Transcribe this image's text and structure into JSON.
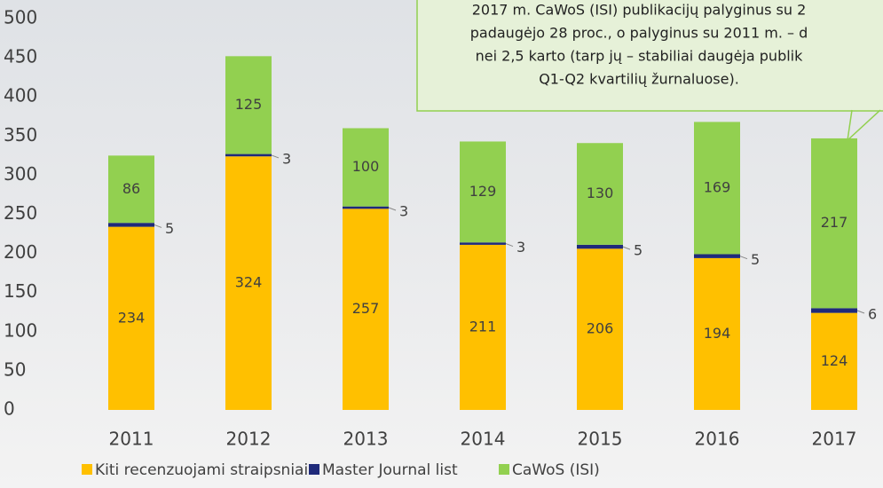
{
  "chart_data": {
    "type": "stacked-bar",
    "categories": [
      "2011",
      "2012",
      "2013",
      "2014",
      "2015",
      "2016",
      "2017"
    ],
    "series": [
      {
        "name": "Kiti recenzuojami straipsniai",
        "color": "#ffc000",
        "values": [
          234,
          324,
          257,
          211,
          206,
          194,
          124
        ]
      },
      {
        "name": "Master Journal list",
        "color": "#1f2a7a",
        "values": [
          5,
          3,
          3,
          3,
          5,
          5,
          6
        ]
      },
      {
        "name": "CaWoS (ISI)",
        "color": "#92d050",
        "values": [
          86,
          125,
          100,
          129,
          130,
          169,
          217
        ]
      }
    ],
    "ylim": [
      0,
      500
    ],
    "yticks": [
      0,
      50,
      100,
      150,
      200,
      250,
      300,
      350,
      400,
      450,
      500
    ],
    "annotation": [
      "2017 m. CaWoS (ISI) publikacijų palyginus su 2",
      "padaugėjo 28 proc., o palyginus su 2011 m. – d",
      "nei 2,5 karto (tarp jų – stabiliai daugėja publik",
      "Q1-Q2 kvartilių žurnaluose)."
    ]
  }
}
